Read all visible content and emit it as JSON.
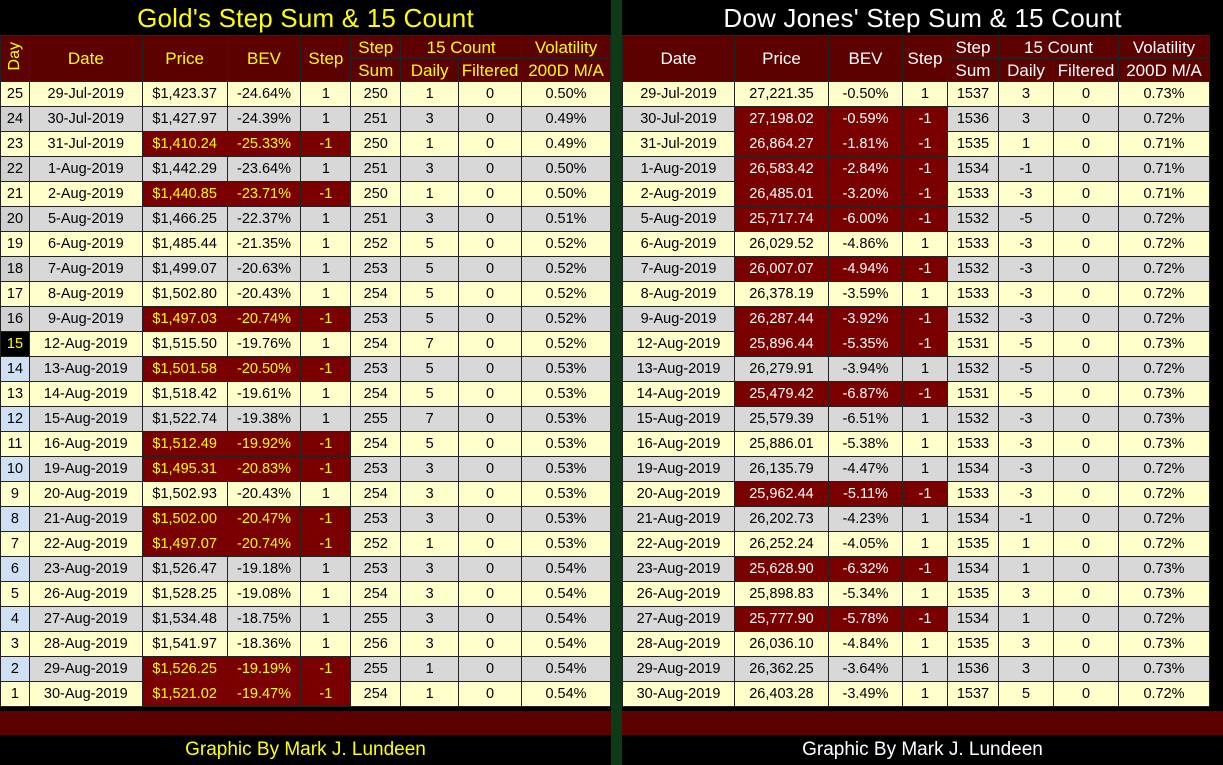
{
  "gold": {
    "title": "Gold's Step Sum & 15 Count",
    "footer": "Graphic By Mark J. Lundeen",
    "headers": {
      "day": "Day",
      "date": "Date",
      "price": "Price",
      "bev": "BEV",
      "step": "Step",
      "step_sum_1": "Step",
      "step_sum_2": "Sum",
      "count15": "15 Count",
      "daily": "Daily",
      "filtered": "Filtered",
      "vol_1": "Volatility",
      "vol_2": "200D M/A"
    },
    "rows": [
      {
        "day": "25",
        "date": "29-Jul-2019",
        "price": "$1,423.37",
        "bev": "-24.64%",
        "step": "1",
        "sum": "250",
        "daily": "1",
        "filtered": "0",
        "vol": "0.50%"
      },
      {
        "day": "24",
        "date": "30-Jul-2019",
        "price": "$1,427.97",
        "bev": "-24.39%",
        "step": "1",
        "sum": "251",
        "daily": "3",
        "filtered": "0",
        "vol": "0.49%"
      },
      {
        "day": "23",
        "date": "31-Jul-2019",
        "price": "$1,410.24",
        "bev": "-25.33%",
        "step": "-1",
        "sum": "250",
        "daily": "1",
        "filtered": "0",
        "vol": "0.49%"
      },
      {
        "day": "22",
        "date": "1-Aug-2019",
        "price": "$1,442.29",
        "bev": "-23.64%",
        "step": "1",
        "sum": "251",
        "daily": "3",
        "filtered": "0",
        "vol": "0.50%"
      },
      {
        "day": "21",
        "date": "2-Aug-2019",
        "price": "$1,440.85",
        "bev": "-23.71%",
        "step": "-1",
        "sum": "250",
        "daily": "1",
        "filtered": "0",
        "vol": "0.50%"
      },
      {
        "day": "20",
        "date": "5-Aug-2019",
        "price": "$1,466.25",
        "bev": "-22.37%",
        "step": "1",
        "sum": "251",
        "daily": "3",
        "filtered": "0",
        "vol": "0.51%"
      },
      {
        "day": "19",
        "date": "6-Aug-2019",
        "price": "$1,485.44",
        "bev": "-21.35%",
        "step": "1",
        "sum": "252",
        "daily": "5",
        "filtered": "0",
        "vol": "0.52%"
      },
      {
        "day": "18",
        "date": "7-Aug-2019",
        "price": "$1,499.07",
        "bev": "-20.63%",
        "step": "1",
        "sum": "253",
        "daily": "5",
        "filtered": "0",
        "vol": "0.52%"
      },
      {
        "day": "17",
        "date": "8-Aug-2019",
        "price": "$1,502.80",
        "bev": "-20.43%",
        "step": "1",
        "sum": "254",
        "daily": "5",
        "filtered": "0",
        "vol": "0.52%"
      },
      {
        "day": "16",
        "date": "9-Aug-2019",
        "price": "$1,497.03",
        "bev": "-20.74%",
        "step": "-1",
        "sum": "253",
        "daily": "5",
        "filtered": "0",
        "vol": "0.52%"
      },
      {
        "day": "15",
        "date": "12-Aug-2019",
        "price": "$1,515.50",
        "bev": "-19.76%",
        "step": "1",
        "sum": "254",
        "daily": "7",
        "filtered": "0",
        "vol": "0.52%"
      },
      {
        "day": "14",
        "date": "13-Aug-2019",
        "price": "$1,501.58",
        "bev": "-20.50%",
        "step": "-1",
        "sum": "253",
        "daily": "5",
        "filtered": "0",
        "vol": "0.53%"
      },
      {
        "day": "13",
        "date": "14-Aug-2019",
        "price": "$1,518.42",
        "bev": "-19.61%",
        "step": "1",
        "sum": "254",
        "daily": "5",
        "filtered": "0",
        "vol": "0.53%"
      },
      {
        "day": "12",
        "date": "15-Aug-2019",
        "price": "$1,522.74",
        "bev": "-19.38%",
        "step": "1",
        "sum": "255",
        "daily": "7",
        "filtered": "0",
        "vol": "0.53%"
      },
      {
        "day": "11",
        "date": "16-Aug-2019",
        "price": "$1,512.49",
        "bev": "-19.92%",
        "step": "-1",
        "sum": "254",
        "daily": "5",
        "filtered": "0",
        "vol": "0.53%"
      },
      {
        "day": "10",
        "date": "19-Aug-2019",
        "price": "$1,495.31",
        "bev": "-20.83%",
        "step": "-1",
        "sum": "253",
        "daily": "3",
        "filtered": "0",
        "vol": "0.53%"
      },
      {
        "day": "9",
        "date": "20-Aug-2019",
        "price": "$1,502.93",
        "bev": "-20.43%",
        "step": "1",
        "sum": "254",
        "daily": "3",
        "filtered": "0",
        "vol": "0.53%"
      },
      {
        "day": "8",
        "date": "21-Aug-2019",
        "price": "$1,502.00",
        "bev": "-20.47%",
        "step": "-1",
        "sum": "253",
        "daily": "3",
        "filtered": "0",
        "vol": "0.53%"
      },
      {
        "day": "7",
        "date": "22-Aug-2019",
        "price": "$1,497.07",
        "bev": "-20.74%",
        "step": "-1",
        "sum": "252",
        "daily": "1",
        "filtered": "0",
        "vol": "0.53%"
      },
      {
        "day": "6",
        "date": "23-Aug-2019",
        "price": "$1,526.47",
        "bev": "-19.18%",
        "step": "1",
        "sum": "253",
        "daily": "3",
        "filtered": "0",
        "vol": "0.54%"
      },
      {
        "day": "5",
        "date": "26-Aug-2019",
        "price": "$1,528.25",
        "bev": "-19.08%",
        "step": "1",
        "sum": "254",
        "daily": "3",
        "filtered": "0",
        "vol": "0.54%"
      },
      {
        "day": "4",
        "date": "27-Aug-2019",
        "price": "$1,534.48",
        "bev": "-18.75%",
        "step": "1",
        "sum": "255",
        "daily": "3",
        "filtered": "0",
        "vol": "0.54%"
      },
      {
        "day": "3",
        "date": "28-Aug-2019",
        "price": "$1,541.97",
        "bev": "-18.36%",
        "step": "1",
        "sum": "256",
        "daily": "3",
        "filtered": "0",
        "vol": "0.54%"
      },
      {
        "day": "2",
        "date": "29-Aug-2019",
        "price": "$1,526.25",
        "bev": "-19.19%",
        "step": "-1",
        "sum": "255",
        "daily": "1",
        "filtered": "0",
        "vol": "0.54%"
      },
      {
        "day": "1",
        "date": "30-Aug-2019",
        "price": "$1,521.02",
        "bev": "-19.47%",
        "step": "-1",
        "sum": "254",
        "daily": "1",
        "filtered": "0",
        "vol": "0.54%"
      }
    ]
  },
  "dow": {
    "title": "Dow Jones' Step Sum & 15 Count",
    "footer": "Graphic By Mark J. Lundeen",
    "headers": {
      "date": "Date",
      "price": "Price",
      "bev": "BEV",
      "step": "Step",
      "step_sum_1": "Step",
      "step_sum_2": "Sum",
      "count15": "15 Count",
      "daily": "Daily",
      "filtered": "Filtered",
      "vol_1": "Volatility",
      "vol_2": "200D M/A"
    },
    "rows": [
      {
        "date": "29-Jul-2019",
        "price": "27,221.35",
        "bev": "-0.50%",
        "step": "1",
        "sum": "1537",
        "daily": "3",
        "filtered": "0",
        "vol": "0.73%"
      },
      {
        "date": "30-Jul-2019",
        "price": "27,198.02",
        "bev": "-0.59%",
        "step": "-1",
        "sum": "1536",
        "daily": "3",
        "filtered": "0",
        "vol": "0.72%"
      },
      {
        "date": "31-Jul-2019",
        "price": "26,864.27",
        "bev": "-1.81%",
        "step": "-1",
        "sum": "1535",
        "daily": "1",
        "filtered": "0",
        "vol": "0.71%"
      },
      {
        "date": "1-Aug-2019",
        "price": "26,583.42",
        "bev": "-2.84%",
        "step": "-1",
        "sum": "1534",
        "daily": "-1",
        "filtered": "0",
        "vol": "0.71%"
      },
      {
        "date": "2-Aug-2019",
        "price": "26,485.01",
        "bev": "-3.20%",
        "step": "-1",
        "sum": "1533",
        "daily": "-3",
        "filtered": "0",
        "vol": "0.71%"
      },
      {
        "date": "5-Aug-2019",
        "price": "25,717.74",
        "bev": "-6.00%",
        "step": "-1",
        "sum": "1532",
        "daily": "-5",
        "filtered": "0",
        "vol": "0.72%"
      },
      {
        "date": "6-Aug-2019",
        "price": "26,029.52",
        "bev": "-4.86%",
        "step": "1",
        "sum": "1533",
        "daily": "-3",
        "filtered": "0",
        "vol": "0.72%"
      },
      {
        "date": "7-Aug-2019",
        "price": "26,007.07",
        "bev": "-4.94%",
        "step": "-1",
        "sum": "1532",
        "daily": "-3",
        "filtered": "0",
        "vol": "0.72%"
      },
      {
        "date": "8-Aug-2019",
        "price": "26,378.19",
        "bev": "-3.59%",
        "step": "1",
        "sum": "1533",
        "daily": "-3",
        "filtered": "0",
        "vol": "0.72%"
      },
      {
        "date": "9-Aug-2019",
        "price": "26,287.44",
        "bev": "-3.92%",
        "step": "-1",
        "sum": "1532",
        "daily": "-3",
        "filtered": "0",
        "vol": "0.72%"
      },
      {
        "date": "12-Aug-2019",
        "price": "25,896.44",
        "bev": "-5.35%",
        "step": "-1",
        "sum": "1531",
        "daily": "-5",
        "filtered": "0",
        "vol": "0.73%"
      },
      {
        "date": "13-Aug-2019",
        "price": "26,279.91",
        "bev": "-3.94%",
        "step": "1",
        "sum": "1532",
        "daily": "-5",
        "filtered": "0",
        "vol": "0.72%"
      },
      {
        "date": "14-Aug-2019",
        "price": "25,479.42",
        "bev": "-6.87%",
        "step": "-1",
        "sum": "1531",
        "daily": "-5",
        "filtered": "0",
        "vol": "0.73%"
      },
      {
        "date": "15-Aug-2019",
        "price": "25,579.39",
        "bev": "-6.51%",
        "step": "1",
        "sum": "1532",
        "daily": "-3",
        "filtered": "0",
        "vol": "0.73%"
      },
      {
        "date": "16-Aug-2019",
        "price": "25,886.01",
        "bev": "-5.38%",
        "step": "1",
        "sum": "1533",
        "daily": "-3",
        "filtered": "0",
        "vol": "0.73%"
      },
      {
        "date": "19-Aug-2019",
        "price": "26,135.79",
        "bev": "-4.47%",
        "step": "1",
        "sum": "1534",
        "daily": "-3",
        "filtered": "0",
        "vol": "0.72%"
      },
      {
        "date": "20-Aug-2019",
        "price": "25,962.44",
        "bev": "-5.11%",
        "step": "-1",
        "sum": "1533",
        "daily": "-3",
        "filtered": "0",
        "vol": "0.72%"
      },
      {
        "date": "21-Aug-2019",
        "price": "26,202.73",
        "bev": "-4.23%",
        "step": "1",
        "sum": "1534",
        "daily": "-1",
        "filtered": "0",
        "vol": "0.72%"
      },
      {
        "date": "22-Aug-2019",
        "price": "26,252.24",
        "bev": "-4.05%",
        "step": "1",
        "sum": "1535",
        "daily": "1",
        "filtered": "0",
        "vol": "0.72%"
      },
      {
        "date": "23-Aug-2019",
        "price": "25,628.90",
        "bev": "-6.32%",
        "step": "-1",
        "sum": "1534",
        "daily": "1",
        "filtered": "0",
        "vol": "0.73%"
      },
      {
        "date": "26-Aug-2019",
        "price": "25,898.83",
        "bev": "-5.34%",
        "step": "1",
        "sum": "1535",
        "daily": "3",
        "filtered": "0",
        "vol": "0.73%"
      },
      {
        "date": "27-Aug-2019",
        "price": "25,777.90",
        "bev": "-5.78%",
        "step": "-1",
        "sum": "1534",
        "daily": "1",
        "filtered": "0",
        "vol": "0.72%"
      },
      {
        "date": "28-Aug-2019",
        "price": "26,036.10",
        "bev": "-4.84%",
        "step": "1",
        "sum": "1535",
        "daily": "3",
        "filtered": "0",
        "vol": "0.73%"
      },
      {
        "date": "29-Aug-2019",
        "price": "26,362.25",
        "bev": "-3.64%",
        "step": "1",
        "sum": "1536",
        "daily": "3",
        "filtered": "0",
        "vol": "0.73%"
      },
      {
        "date": "30-Aug-2019",
        "price": "26,403.28",
        "bev": "-3.49%",
        "step": "1",
        "sum": "1537",
        "daily": "5",
        "filtered": "0",
        "vol": "0.72%"
      }
    ]
  },
  "colors": {
    "header_bg": "#5c0000",
    "down_bg": "#7a0000",
    "odd_row": "#ffffcc",
    "even_row": "#d8d8d8",
    "gold_text": "#ffff00",
    "dow_text": "#ffffff"
  }
}
